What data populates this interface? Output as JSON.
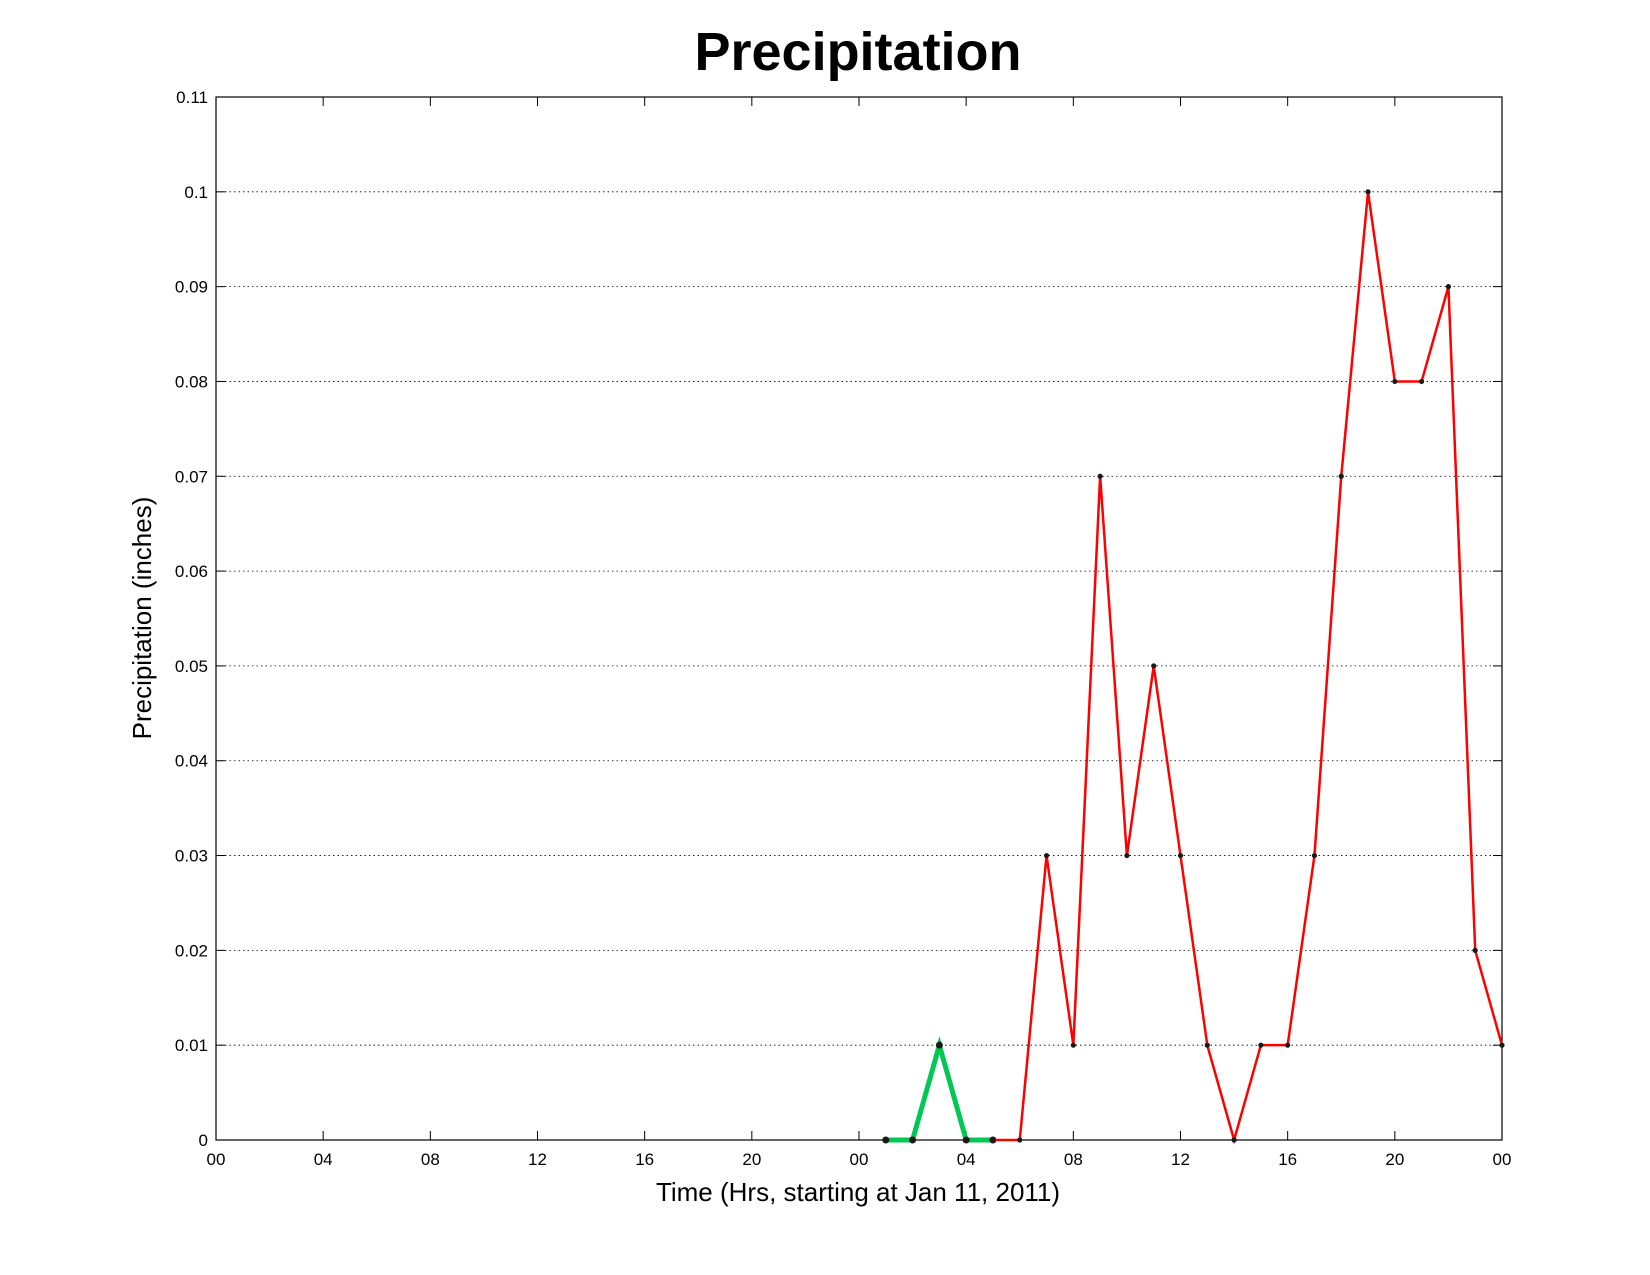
{
  "chart_data": {
    "type": "line",
    "title": "Precipitation",
    "xlabel": "Time (Hrs, starting at Jan 11, 2011)",
    "ylabel": "Precipitation (inches)",
    "xlim": [
      0,
      48
    ],
    "ylim": [
      0,
      0.11
    ],
    "grid": true,
    "x_ticks": [
      0,
      4,
      8,
      12,
      16,
      20,
      24,
      28,
      32,
      36,
      40,
      44,
      48
    ],
    "x_tick_labels": [
      "00",
      "04",
      "08",
      "12",
      "16",
      "20",
      "00",
      "04",
      "08",
      "12",
      "16",
      "20",
      "00"
    ],
    "y_ticks": [
      0,
      0.01,
      0.02,
      0.03,
      0.04,
      0.05,
      0.06,
      0.07,
      0.08,
      0.09,
      0.1,
      0.11
    ],
    "y_tick_labels": [
      "0",
      "0.01",
      "0.02",
      "0.03",
      "0.04",
      "0.05",
      "0.06",
      "0.07",
      "0.08",
      "0.09",
      "0.1",
      "0.11"
    ],
    "series": [
      {
        "color": "#00c853",
        "line_width": 5,
        "x": [
          25,
          26,
          27,
          28,
          29
        ],
        "y": [
          0,
          0,
          0.01,
          0,
          0
        ]
      },
      {
        "color": "#ff0000",
        "line_width": 2.5,
        "x": [
          29,
          30,
          31,
          32,
          33,
          34,
          35,
          36,
          37,
          38,
          39,
          40,
          41,
          42,
          43,
          44,
          45,
          46,
          47,
          48
        ],
        "y": [
          0,
          0,
          0.03,
          0.01,
          0.07,
          0.03,
          0.05,
          0.03,
          0.01,
          0,
          0.01,
          0.01,
          0.03,
          0.07,
          0.1,
          0.08,
          0.08,
          0.09,
          0.02,
          0.01
        ]
      }
    ]
  }
}
